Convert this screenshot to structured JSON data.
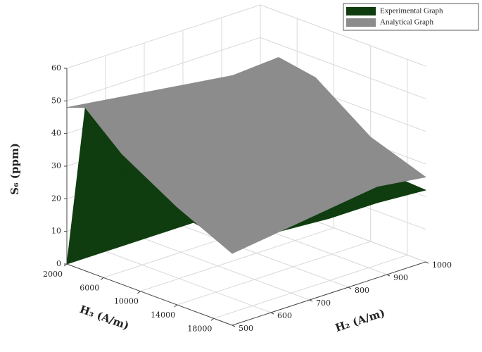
{
  "chart_data": {
    "type": "surface",
    "xlabel": "H₃ (A/m)",
    "ylabel": "H₂ (A/m)",
    "zlabel": "S₆ (ppm)",
    "x": [
      2000,
      4000,
      8000,
      14000,
      20000
    ],
    "y": [
      500,
      625,
      750,
      875,
      1000
    ],
    "xlim": [
      2000,
      20000
    ],
    "xticks": [
      2000,
      6000,
      10000,
      14000,
      18000
    ],
    "ylim": [
      500,
      1000
    ],
    "yticks": [
      500,
      600,
      700,
      800,
      900,
      1000
    ],
    "zlim": [
      0,
      60
    ],
    "zticks": [
      0,
      10,
      20,
      30,
      40,
      50,
      60
    ],
    "grid": true,
    "legend": "upper right",
    "series": [
      {
        "name": "Experimental Graph",
        "color": "#0f3d0f",
        "values": [
          [
            0,
            0,
            0,
            0,
            0
          ],
          [
            50,
            45,
            40,
            35,
            30
          ],
          [
            35,
            30,
            27,
            25,
            24
          ],
          [
            28,
            26,
            25,
            24,
            23
          ],
          [
            25,
            24,
            23,
            23,
            22
          ]
        ]
      },
      {
        "name": "Analytical Graph",
        "color": "#8c8c8c",
        "values": [
          [
            48,
            46,
            44,
            42,
            40
          ],
          [
            50,
            47,
            45,
            45,
            46
          ],
          [
            40,
            38,
            40,
            44,
            44
          ],
          [
            30,
            30,
            32,
            36,
            32
          ],
          [
            22,
            24,
            26,
            28,
            26
          ]
        ]
      }
    ]
  }
}
